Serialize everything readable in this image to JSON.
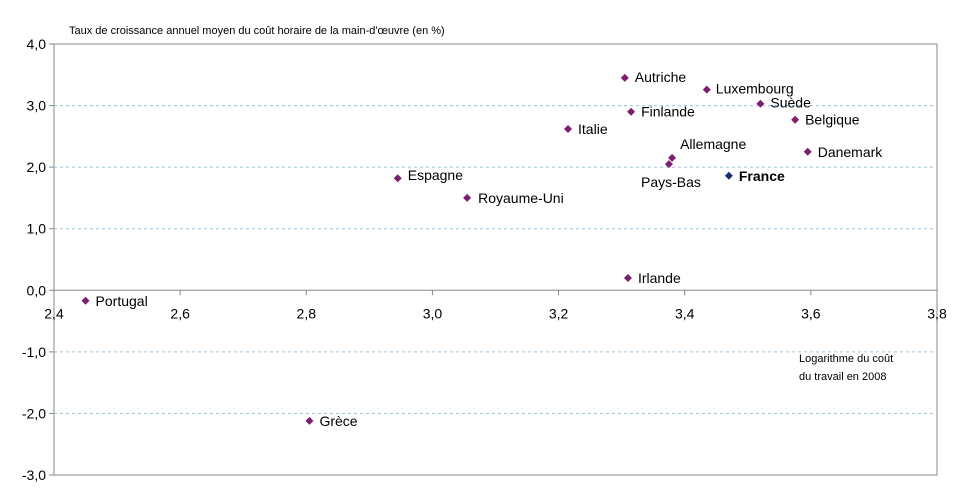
{
  "chart_data": {
    "type": "scatter",
    "title": "Taux de croissance annuel moyen du coût horaire de la main-d'œuvre (en %)",
    "xlabel_lines": [
      "Logarithme du coût",
      "du travail en 2008"
    ],
    "xlim": [
      2.4,
      3.8
    ],
    "ylim": [
      -3.0,
      4.0
    ],
    "x_ticks": [
      "2,4",
      "2,6",
      "2,8",
      "3,0",
      "3,2",
      "3,4",
      "3,6",
      "3,8"
    ],
    "y_ticks": [
      "4,0",
      "3,0",
      "2,0",
      "1,0",
      "0,0",
      "-1,0",
      "-2,0",
      "-3,0"
    ],
    "grid": "horizontal dashed",
    "points": [
      {
        "label": "Portugal",
        "x": 2.45,
        "y": -0.17,
        "color": "#7b1f6e"
      },
      {
        "label": "Grèce",
        "x": 2.805,
        "y": -2.12,
        "color": "#7b1f6e"
      },
      {
        "label": "Espagne",
        "x": 2.945,
        "y": 1.82,
        "color": "#7b1f6e"
      },
      {
        "label": "Royaume-Uni",
        "x": 3.055,
        "y": 1.5,
        "color": "#7b1f6e"
      },
      {
        "label": "Italie",
        "x": 3.215,
        "y": 2.62,
        "color": "#7b1f6e"
      },
      {
        "label": "Autriche",
        "x": 3.305,
        "y": 3.45,
        "color": "#7b1f6e"
      },
      {
        "label": "Finlande",
        "x": 3.315,
        "y": 2.9,
        "color": "#7b1f6e"
      },
      {
        "label": "Irlande",
        "x": 3.31,
        "y": 0.2,
        "color": "#7b1f6e"
      },
      {
        "label": "Allemagne",
        "x": 3.38,
        "y": 2.15,
        "color": "#7b1f6e"
      },
      {
        "label": "Pays-Bas",
        "x": 3.375,
        "y": 2.05,
        "color": "#7b1f6e"
      },
      {
        "label": "Luxembourg",
        "x": 3.435,
        "y": 3.26,
        "color": "#7b1f6e"
      },
      {
        "label": "France",
        "x": 3.47,
        "y": 1.86,
        "color": "#1f2b6e",
        "bold": true
      },
      {
        "label": "Suède",
        "x": 3.52,
        "y": 3.03,
        "color": "#7b1f6e"
      },
      {
        "label": "Belgique",
        "x": 3.575,
        "y": 2.77,
        "color": "#7b1f6e"
      },
      {
        "label": "Danemark",
        "x": 3.595,
        "y": 2.25,
        "color": "#7b1f6e"
      }
    ]
  }
}
